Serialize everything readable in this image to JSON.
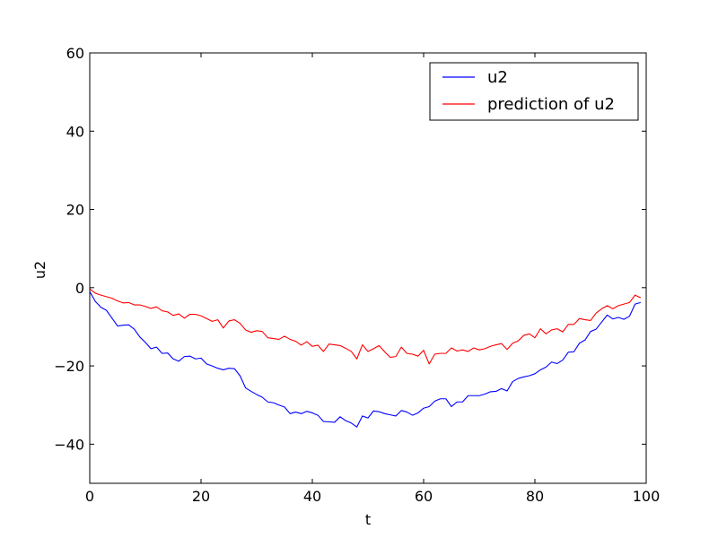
{
  "chart_data": {
    "type": "line",
    "xlabel": "t",
    "ylabel": "u2",
    "xlim": [
      0,
      100
    ],
    "ylim": [
      -50,
      60
    ],
    "xticks": [
      0,
      20,
      40,
      60,
      80,
      100
    ],
    "yticks": [
      -40,
      -20,
      0,
      20,
      40,
      60
    ],
    "xtick_labels": [
      "0",
      "20",
      "40",
      "60",
      "80",
      "100"
    ],
    "ytick_labels": [
      "−40",
      "−20",
      "0",
      "20",
      "40",
      "60"
    ],
    "grid": false,
    "legend_position": "top-right",
    "series": [
      {
        "name": "u2",
        "color": "#0000ff",
        "x": [
          0,
          1,
          2,
          3,
          4,
          5,
          6,
          7,
          8,
          9,
          10,
          11,
          12,
          13,
          14,
          15,
          16,
          17,
          18,
          19,
          20,
          21,
          22,
          23,
          24,
          25,
          26,
          27,
          28,
          29,
          30,
          31,
          32,
          33,
          34,
          35,
          36,
          37,
          38,
          39,
          40,
          41,
          42,
          43,
          44,
          45,
          46,
          47,
          48,
          49,
          50,
          51,
          52,
          53,
          54,
          55,
          56,
          57,
          58,
          59,
          60,
          61,
          62,
          63,
          64,
          65,
          66,
          67,
          68,
          69,
          70,
          71,
          72,
          73,
          74,
          75,
          76,
          77,
          78,
          79,
          80,
          81,
          82,
          83,
          84,
          85,
          86,
          87,
          88,
          89,
          90,
          91,
          92,
          93,
          94,
          95,
          96,
          97,
          98,
          99
        ],
        "y": [
          -1.0,
          -3.5,
          -5.0,
          -5.8,
          -7.8,
          -9.8,
          -9.6,
          -9.5,
          -10.6,
          -12.6,
          -14.0,
          -15.6,
          -15.2,
          -16.8,
          -16.7,
          -18.2,
          -18.8,
          -17.6,
          -17.5,
          -18.2,
          -18.0,
          -19.5,
          -20.0,
          -20.6,
          -21.0,
          -20.6,
          -20.7,
          -22.5,
          -25.6,
          -26.5,
          -27.3,
          -28.0,
          -29.2,
          -29.4,
          -30.0,
          -30.5,
          -32.2,
          -31.8,
          -32.2,
          -31.6,
          -32.0,
          -32.6,
          -34.2,
          -34.3,
          -34.4,
          -33.0,
          -34.0,
          -34.6,
          -35.6,
          -32.8,
          -33.3,
          -31.5,
          -31.7,
          -32.2,
          -32.5,
          -32.8,
          -31.4,
          -31.8,
          -32.6,
          -32.0,
          -30.8,
          -30.4,
          -29.0,
          -28.4,
          -28.4,
          -30.4,
          -29.2,
          -29.2,
          -27.6,
          -27.6,
          -27.6,
          -27.2,
          -26.6,
          -26.5,
          -25.8,
          -26.4,
          -24.0,
          -23.2,
          -22.8,
          -22.5,
          -22.0,
          -21.0,
          -20.3,
          -19.0,
          -19.4,
          -18.5,
          -16.5,
          -16.4,
          -14.2,
          -13.4,
          -11.2,
          -10.6,
          -8.8,
          -7.0,
          -8.0,
          -7.6,
          -8.1,
          -7.3,
          -4.2,
          -3.8
        ]
      },
      {
        "name": "prediction of u2",
        "color": "#ff0000",
        "x": [
          0,
          1,
          2,
          3,
          4,
          5,
          6,
          7,
          8,
          9,
          10,
          11,
          12,
          13,
          14,
          15,
          16,
          17,
          18,
          19,
          20,
          21,
          22,
          23,
          24,
          25,
          26,
          27,
          28,
          29,
          30,
          31,
          32,
          33,
          34,
          35,
          36,
          37,
          38,
          39,
          40,
          41,
          42,
          43,
          44,
          45,
          46,
          47,
          48,
          49,
          50,
          51,
          52,
          53,
          54,
          55,
          56,
          57,
          58,
          59,
          60,
          61,
          62,
          63,
          64,
          65,
          66,
          67,
          68,
          69,
          70,
          71,
          72,
          73,
          74,
          75,
          76,
          77,
          78,
          79,
          80,
          81,
          82,
          83,
          84,
          85,
          86,
          87,
          88,
          89,
          90,
          91,
          92,
          93,
          94,
          95,
          96,
          97,
          98,
          99
        ],
        "y": [
          -0.3,
          -1.4,
          -1.9,
          -2.3,
          -2.7,
          -3.4,
          -3.9,
          -3.8,
          -4.4,
          -4.4,
          -4.8,
          -5.3,
          -4.9,
          -5.9,
          -6.2,
          -7.1,
          -6.7,
          -7.8,
          -6.8,
          -6.8,
          -7.2,
          -7.9,
          -8.6,
          -8.2,
          -10.3,
          -8.5,
          -8.2,
          -9.1,
          -10.8,
          -11.4,
          -11.0,
          -11.2,
          -12.8,
          -13.0,
          -13.2,
          -12.4,
          -13.2,
          -13.7,
          -14.7,
          -13.8,
          -15.0,
          -14.7,
          -16.3,
          -14.4,
          -14.6,
          -14.8,
          -15.5,
          -16.3,
          -18.2,
          -14.6,
          -16.3,
          -15.6,
          -14.8,
          -16.4,
          -17.8,
          -17.6,
          -15.2,
          -16.8,
          -17.0,
          -17.5,
          -16.0,
          -19.5,
          -17.0,
          -16.8,
          -16.8,
          -15.4,
          -16.2,
          -15.9,
          -16.3,
          -15.4,
          -15.9,
          -15.6,
          -15.0,
          -14.6,
          -14.3,
          -15.8,
          -14.2,
          -13.6,
          -12.2,
          -11.8,
          -12.8,
          -10.5,
          -11.8,
          -10.8,
          -10.5,
          -11.3,
          -9.4,
          -9.4,
          -7.9,
          -8.2,
          -8.4,
          -6.5,
          -5.4,
          -4.6,
          -5.4,
          -4.6,
          -4.2,
          -3.8,
          -1.9,
          -2.6
        ]
      }
    ]
  }
}
